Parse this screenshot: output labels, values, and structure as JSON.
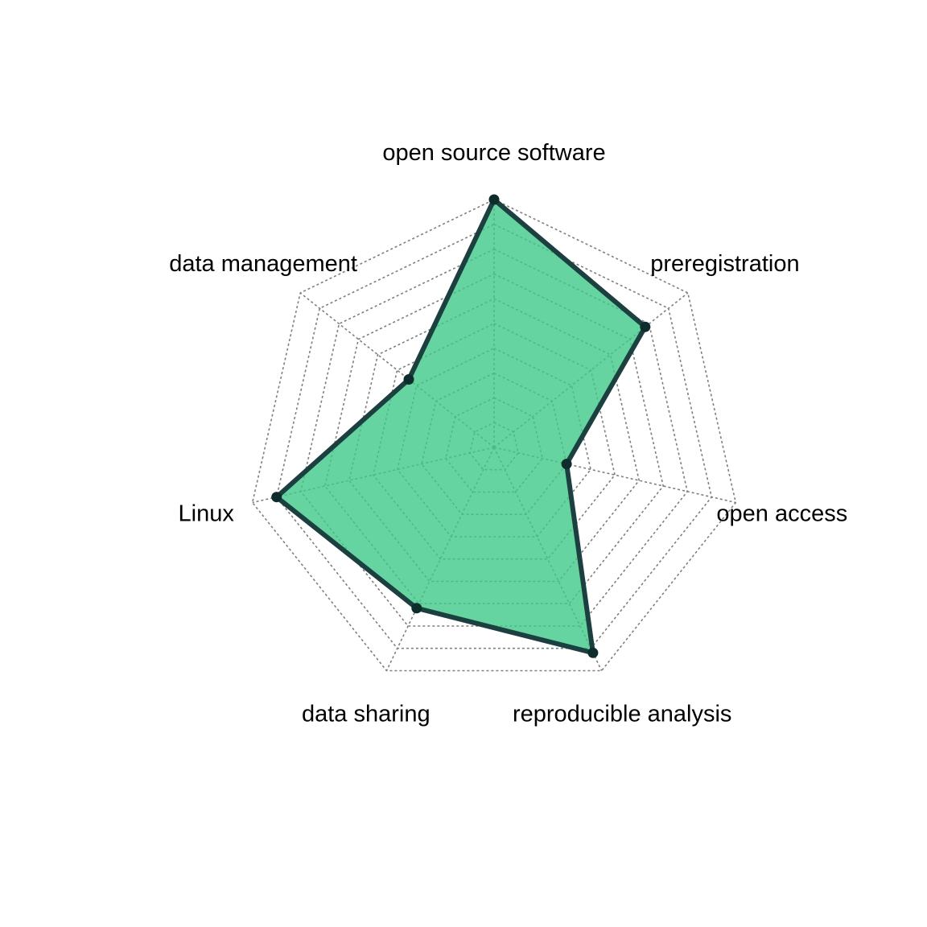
{
  "chart_data": {
    "type": "radar",
    "axes": [
      "open source software",
      "preregistration",
      "open access",
      "reproducible analysis",
      "data sharing",
      "Linux",
      "data management"
    ],
    "series": [
      {
        "values": [
          1.0,
          0.78,
          0.3,
          0.92,
          0.72,
          0.9,
          0.44
        ]
      }
    ],
    "rlim": [
      0,
      1
    ],
    "grid_levels": 10,
    "grid": true,
    "colors": {
      "fill": "#3ec98a",
      "fill_opacity": 0.8,
      "line": "#1c3f3f",
      "point": "#0f2c2c",
      "grid": "#7f7f7f"
    }
  }
}
